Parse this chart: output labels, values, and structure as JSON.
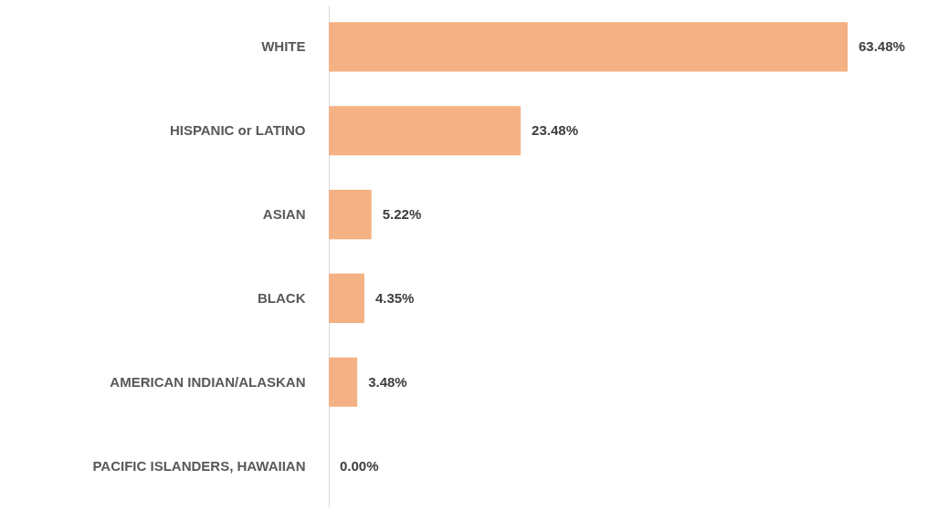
{
  "chart_data": {
    "type": "bar",
    "orientation": "horizontal",
    "categories": [
      "WHITE",
      "HISPANIC or LATINO",
      "ASIAN",
      "BLACK",
      "AMERICAN INDIAN/ALASKAN",
      "PACIFIC ISLANDERS, HAWAIIAN"
    ],
    "values": [
      63.48,
      23.48,
      5.22,
      4.35,
      3.48,
      0.0
    ],
    "value_labels": [
      "63.48%",
      "23.48%",
      "5.22%",
      "4.35%",
      "3.48%",
      "0.00%"
    ],
    "color": "#f4b183"
  }
}
